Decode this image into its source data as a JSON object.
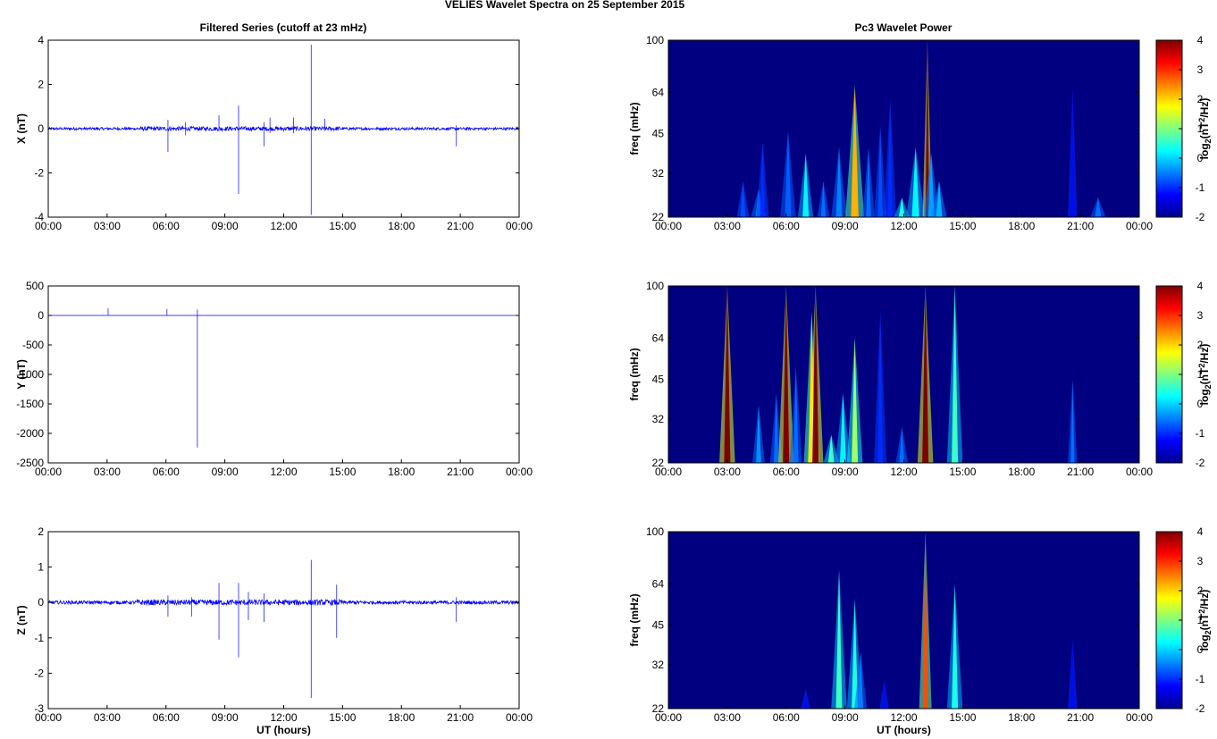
{
  "figure": {
    "title": "VELIES Wavelet Spectra on 25 September 2015",
    "left_title": "Filtered Series (cutoff at 23 mHz)",
    "right_title": "Pc3 Wavelet Power"
  },
  "chart_data": [
    {
      "type": "line",
      "id": "x",
      "ylabel": "X (nT)",
      "xlabel": "",
      "xlim": [
        0,
        24
      ],
      "xticks": [
        "00:00",
        "03:00",
        "06:00",
        "09:00",
        "12:00",
        "15:00",
        "18:00",
        "21:00",
        "00:00"
      ],
      "ylim": [
        -4,
        4
      ],
      "yticks": [
        -4,
        -2,
        0,
        2,
        4
      ],
      "noise_amplitude": 0.06,
      "series_color": "#0000ff",
      "spikes": [
        {
          "t": 6.1,
          "lo": -1.05,
          "hi": 0.4
        },
        {
          "t": 7.0,
          "lo": -0.3,
          "hi": 0.3
        },
        {
          "t": 8.7,
          "lo": -0.1,
          "hi": 0.6
        },
        {
          "t": 9.7,
          "lo": -2.95,
          "hi": 1.05
        },
        {
          "t": 11.0,
          "lo": -0.8,
          "hi": 0.3
        },
        {
          "t": 11.3,
          "lo": -0.2,
          "hi": 0.5
        },
        {
          "t": 12.5,
          "lo": -0.2,
          "hi": 0.5
        },
        {
          "t": 13.4,
          "lo": -3.9,
          "hi": 3.8
        },
        {
          "t": 14.1,
          "lo": -0.1,
          "hi": 0.45
        },
        {
          "t": 20.8,
          "lo": -0.8,
          "hi": 0.15
        }
      ]
    },
    {
      "type": "line",
      "id": "y",
      "ylabel": "Y (nT)",
      "xlabel": "",
      "xlim": [
        0,
        24
      ],
      "xticks": [
        "00:00",
        "03:00",
        "06:00",
        "09:00",
        "12:00",
        "15:00",
        "18:00",
        "21:00",
        "00:00"
      ],
      "ylim": [
        -2500,
        500
      ],
      "yticks": [
        -2500,
        -2000,
        -1500,
        -1000,
        -500,
        0,
        500
      ],
      "noise_amplitude": 0,
      "series_color": "#0000ff",
      "spikes": [
        {
          "t": 3.05,
          "lo": 0,
          "hi": 120
        },
        {
          "t": 6.05,
          "lo": 0,
          "hi": 110
        },
        {
          "t": 7.6,
          "lo": -2240,
          "hi": 100
        }
      ]
    },
    {
      "type": "line",
      "id": "z",
      "ylabel": "Z (nT)",
      "xlabel": "UT (hours)",
      "xlim": [
        0,
        24
      ],
      "xticks": [
        "00:00",
        "03:00",
        "06:00",
        "09:00",
        "12:00",
        "15:00",
        "18:00",
        "21:00",
        "00:00"
      ],
      "ylim": [
        -3,
        2
      ],
      "yticks": [
        -3,
        -2,
        -1,
        0,
        1,
        2
      ],
      "noise_amplitude": 0.05,
      "series_color": "#0000ff",
      "spikes": [
        {
          "t": 6.1,
          "lo": -0.4,
          "hi": 0.2
        },
        {
          "t": 7.3,
          "lo": -0.4,
          "hi": 0.15
        },
        {
          "t": 8.7,
          "lo": -1.05,
          "hi": 0.55
        },
        {
          "t": 9.7,
          "lo": -1.55,
          "hi": 0.55
        },
        {
          "t": 10.2,
          "lo": -0.5,
          "hi": 0.3
        },
        {
          "t": 11.0,
          "lo": -0.55,
          "hi": 0.25
        },
        {
          "t": 13.4,
          "lo": -2.7,
          "hi": 1.2
        },
        {
          "t": 14.7,
          "lo": -1.0,
          "hi": 0.5
        },
        {
          "t": 20.8,
          "lo": -0.55,
          "hi": 0.15
        }
      ]
    },
    {
      "type": "heatmap",
      "id": "x_power",
      "ylabel": "freq (mHz)",
      "xlabel": "",
      "xlim": [
        0,
        24
      ],
      "xticks": [
        "00:00",
        "03:00",
        "06:00",
        "09:00",
        "12:00",
        "15:00",
        "18:00",
        "21:00",
        "00:00"
      ],
      "yscale": "log",
      "ylim": [
        22,
        100
      ],
      "yticks": [
        22,
        32,
        45,
        64,
        100
      ],
      "colorbar_label_base": "log",
      "colorbar_label_sub": "2",
      "colorbar_label_rest": "(nT",
      "colorbar_label_sup": "2",
      "colorbar_label_end": "/Hz)",
      "clim": [
        -2,
        4
      ],
      "cticks": [
        -2,
        -1,
        0,
        1,
        2,
        3,
        4
      ],
      "background_value": -2,
      "streaks": [
        {
          "t": 3.8,
          "fmax": 30,
          "peak": -0.8,
          "w": 0.04
        },
        {
          "t": 4.6,
          "fmax": 28,
          "peak": -0.5,
          "w": 0.05
        },
        {
          "t": 4.8,
          "fmax": 42,
          "peak": -1.0,
          "w": 0.04
        },
        {
          "t": 6.1,
          "fmax": 46,
          "peak": -0.7,
          "w": 0.05
        },
        {
          "t": 7.0,
          "fmax": 38,
          "peak": 0.2,
          "w": 0.05
        },
        {
          "t": 7.9,
          "fmax": 30,
          "peak": -0.6,
          "w": 0.04
        },
        {
          "t": 8.7,
          "fmax": 40,
          "peak": -0.5,
          "w": 0.05
        },
        {
          "t": 9.5,
          "fmax": 68,
          "peak": 2.2,
          "w": 0.06
        },
        {
          "t": 10.2,
          "fmax": 40,
          "peak": -0.6,
          "w": 0.04
        },
        {
          "t": 10.8,
          "fmax": 48,
          "peak": -0.8,
          "w": 0.04
        },
        {
          "t": 11.3,
          "fmax": 60,
          "peak": -1.0,
          "w": 0.04
        },
        {
          "t": 11.9,
          "fmax": 26,
          "peak": 0.4,
          "w": 0.05
        },
        {
          "t": 12.6,
          "fmax": 40,
          "peak": 0.2,
          "w": 0.06
        },
        {
          "t": 13.2,
          "fmax": 100,
          "peak": 4.0,
          "w": 0.03
        },
        {
          "t": 13.4,
          "fmax": 38,
          "peak": -0.3,
          "w": 0.05
        },
        {
          "t": 13.8,
          "fmax": 30,
          "peak": -0.2,
          "w": 0.05
        },
        {
          "t": 20.6,
          "fmax": 66,
          "peak": -1.2,
          "w": 0.03
        },
        {
          "t": 21.9,
          "fmax": 26,
          "peak": -0.6,
          "w": 0.05
        }
      ]
    },
    {
      "type": "heatmap",
      "id": "y_power",
      "ylabel": "freq (mHz)",
      "xlabel": "",
      "xlim": [
        0,
        24
      ],
      "xticks": [
        "00:00",
        "03:00",
        "06:00",
        "09:00",
        "12:00",
        "15:00",
        "18:00",
        "21:00",
        "00:00"
      ],
      "yscale": "log",
      "ylim": [
        22,
        100
      ],
      "yticks": [
        22,
        32,
        45,
        64,
        100
      ],
      "colorbar_label_base": "log",
      "colorbar_label_sub": "2",
      "colorbar_label_rest": "(nT",
      "colorbar_label_sup": "2",
      "colorbar_label_end": "/Hz)",
      "clim": [
        -2,
        4
      ],
      "cticks": [
        -2,
        -1,
        0,
        1,
        2,
        3,
        4
      ],
      "background_value": -2,
      "streaks": [
        {
          "t": 3.0,
          "fmax": 100,
          "peak": 4.0,
          "w": 0.05
        },
        {
          "t": 4.6,
          "fmax": 36,
          "peak": -0.4,
          "w": 0.04
        },
        {
          "t": 5.5,
          "fmax": 40,
          "peak": -0.6,
          "w": 0.04
        },
        {
          "t": 6.0,
          "fmax": 100,
          "peak": 4.0,
          "w": 0.05
        },
        {
          "t": 6.5,
          "fmax": 50,
          "peak": -0.6,
          "w": 0.04
        },
        {
          "t": 7.3,
          "fmax": 80,
          "peak": 2.0,
          "w": 0.05
        },
        {
          "t": 7.5,
          "fmax": 100,
          "peak": 4.0,
          "w": 0.05
        },
        {
          "t": 8.3,
          "fmax": 28,
          "peak": 0.6,
          "w": 0.05
        },
        {
          "t": 8.9,
          "fmax": 40,
          "peak": 0.2,
          "w": 0.05
        },
        {
          "t": 9.5,
          "fmax": 64,
          "peak": 1.2,
          "w": 0.05
        },
        {
          "t": 10.8,
          "fmax": 80,
          "peak": -1.0,
          "w": 0.04
        },
        {
          "t": 11.9,
          "fmax": 30,
          "peak": -0.6,
          "w": 0.04
        },
        {
          "t": 13.1,
          "fmax": 100,
          "peak": 4.0,
          "w": 0.05
        },
        {
          "t": 14.6,
          "fmax": 100,
          "peak": 0.6,
          "w": 0.05
        },
        {
          "t": 20.6,
          "fmax": 45,
          "peak": -0.6,
          "w": 0.03
        }
      ]
    },
    {
      "type": "heatmap",
      "id": "z_power",
      "ylabel": "freq (mHz)",
      "xlabel": "UT (hours)",
      "xlim": [
        0,
        24
      ],
      "xticks": [
        "00:00",
        "03:00",
        "06:00",
        "09:00",
        "12:00",
        "15:00",
        "18:00",
        "21:00",
        "00:00"
      ],
      "yscale": "log",
      "ylim": [
        22,
        100
      ],
      "yticks": [
        22,
        32,
        45,
        64,
        100
      ],
      "colorbar_label_base": "log",
      "colorbar_label_sub": "2",
      "colorbar_label_rest": "(nT",
      "colorbar_label_sup": "2",
      "colorbar_label_end": "/Hz)",
      "clim": [
        -2,
        4
      ],
      "cticks": [
        -2,
        -1,
        0,
        1,
        2,
        3,
        4
      ],
      "background_value": -2,
      "streaks": [
        {
          "t": 7.0,
          "fmax": 26,
          "peak": -1.2,
          "w": 0.03
        },
        {
          "t": 8.7,
          "fmax": 72,
          "peak": 0.6,
          "w": 0.05
        },
        {
          "t": 9.5,
          "fmax": 56,
          "peak": 0.4,
          "w": 0.05
        },
        {
          "t": 9.8,
          "fmax": 36,
          "peak": -0.5,
          "w": 0.04
        },
        {
          "t": 11.0,
          "fmax": 28,
          "peak": -1.2,
          "w": 0.03
        },
        {
          "t": 13.1,
          "fmax": 100,
          "peak": 2.8,
          "w": 0.04
        },
        {
          "t": 14.6,
          "fmax": 64,
          "peak": 0.4,
          "w": 0.05
        },
        {
          "t": 20.6,
          "fmax": 40,
          "peak": -1.2,
          "w": 0.03
        }
      ]
    }
  ]
}
